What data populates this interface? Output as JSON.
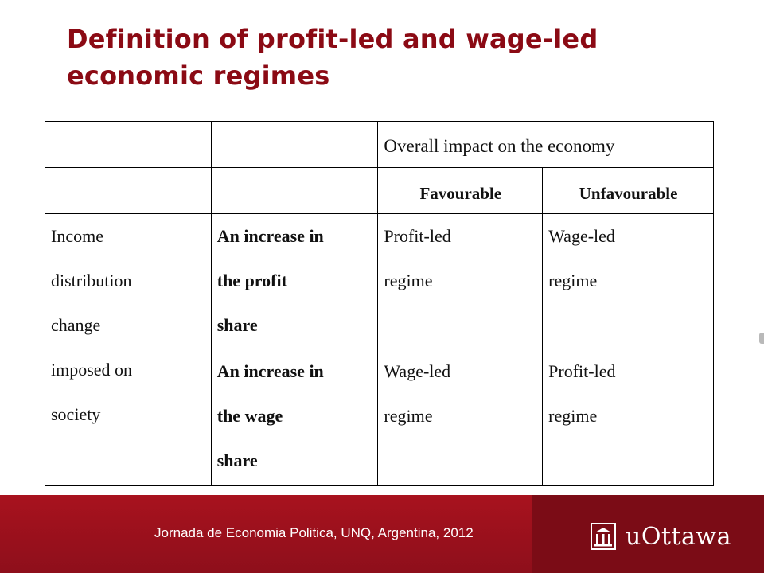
{
  "title": "Definition of profit-led and wage-led economic regimes",
  "table": {
    "header_impact": "Overall impact on the  economy",
    "header_favourable": "Favourable",
    "header_unfavourable": "Unfavourable",
    "row_label_lines": [
      "Income",
      "distribution",
      "change",
      "imposed on",
      "society"
    ],
    "rows": [
      {
        "condition_lines": [
          "An increase in",
          "the profit",
          "share"
        ],
        "favourable_lines": [
          "Profit-led",
          "regime"
        ],
        "unfavourable_lines": [
          "Wage-led",
          "regime"
        ]
      },
      {
        "condition_lines": [
          "An increase in",
          "the wage",
          "share"
        ],
        "favourable_lines": [
          "Wage-led",
          "regime"
        ],
        "unfavourable_lines": [
          "Profit-led",
          "regime"
        ]
      }
    ]
  },
  "footer": {
    "text": "Jornada de Economia Politica, UNQ, Argentina, 2012",
    "logo_text": "uOttawa",
    "logo_icon": "university-building-icon",
    "bar_color": "#8e0f1b"
  }
}
